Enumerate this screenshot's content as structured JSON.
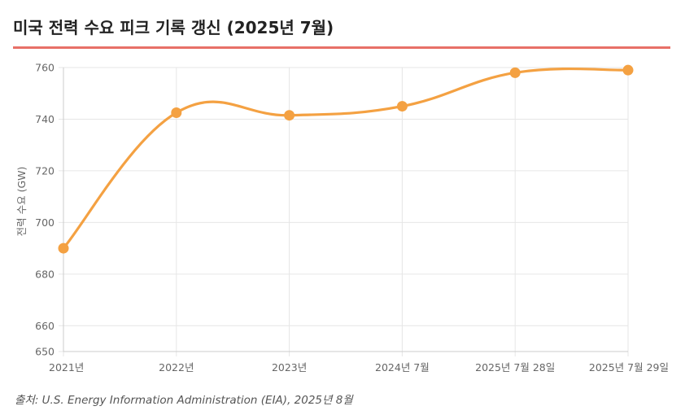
{
  "title": "미국 전력 수요 피크 기록 갱신 (2025년 7월)",
  "source": "출처: U.S. Energy Information Administration (EIA), 2025년 8월",
  "colors": {
    "accent_rule": "#e87068",
    "series_line": "#f4a142",
    "gridline": "#e6e6e6",
    "axis_text": "#666666"
  },
  "chart_data": {
    "type": "line",
    "ylabel": "전력 수요 (GW)",
    "xlabel": "",
    "ylim": [
      650,
      760
    ],
    "yticks": [
      650,
      660,
      680,
      700,
      720,
      740,
      760
    ],
    "grid": true,
    "legend": "none",
    "categories": [
      "2021년",
      "2022년",
      "2023년",
      "2024년 7월",
      "2025년 7월 28일",
      "2025년 7월 29일"
    ],
    "series": [
      {
        "values": [
          690,
          742.5,
          741.5,
          745,
          758,
          759
        ],
        "color": "#f4a142"
      }
    ]
  }
}
